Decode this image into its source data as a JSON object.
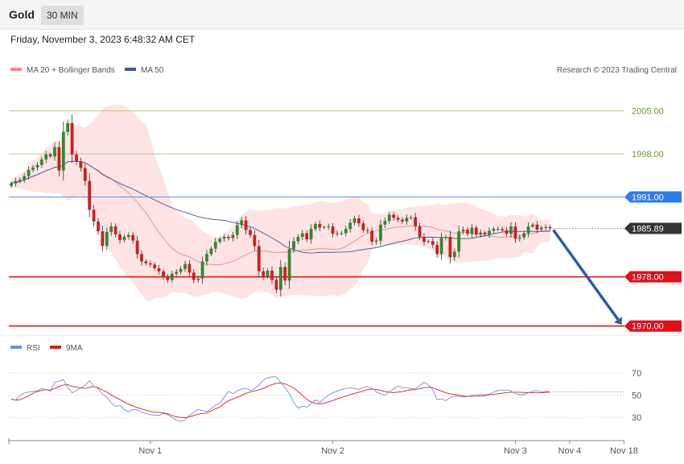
{
  "header": {
    "instrument": "Gold",
    "timeframe": "30 MIN",
    "datetime": "Friday, November 3, 2023 6:48:32 AM CET",
    "credit": "Research © 2023 Trading Central"
  },
  "colors": {
    "bull": "#2f8a2f",
    "bear": "#cc1f1f",
    "bb_fill": "#fde3e3",
    "ma20": "#f08a8a",
    "ma50": "#3a5a9c",
    "resistance_green": "#a9cc7a",
    "pivot_blue": "#5b8def",
    "support_red": "#e01b1b",
    "arrow": "#2f5c9e",
    "rsi": "#6b8fe0",
    "rsi_ma": "#e01b1b"
  },
  "chart_data": [
    {
      "type": "candlestick",
      "legend": [
        {
          "name": "MA 20 + Bollinger Bands",
          "color": "#f08a8a"
        },
        {
          "name": "MA 50",
          "color": "#3a5a9c"
        }
      ],
      "legend_position": "top-left",
      "ylim": [
        1969.7,
        2009.8
      ],
      "x_ticks": [
        "Nov 1",
        "Nov 2",
        "Nov 3",
        "Nov 4",
        "Nov 18"
      ],
      "levels": [
        {
          "value": 2005.0,
          "label": "2005.00",
          "role": "resistance"
        },
        {
          "value": 1998.0,
          "label": "1998.00",
          "role": "resistance"
        },
        {
          "value": 1991.0,
          "label": "1991.00",
          "role": "pivot"
        },
        {
          "value": 1985.89,
          "label": "1985.89",
          "role": "last"
        },
        {
          "value": 1978.0,
          "label": "1978.00",
          "role": "support"
        },
        {
          "value": 1970.0,
          "label": "1970.00",
          "role": "support"
        }
      ],
      "last_price": 1985.89,
      "forecast_arrow": {
        "from": 1985.89,
        "to": 1970.0
      },
      "close": [
        1993.2,
        1993.6,
        1993.8,
        1994.4,
        1995.4,
        1995.8,
        1996.2,
        1997.1,
        1997.9,
        1997.6,
        1999.1,
        1995.3,
        2001.6,
        2003.0,
        1997.9,
        1996.8,
        1995.7,
        1993.6,
        1988.9,
        1987.0,
        1985.4,
        1983.0,
        1985.3,
        1986.2,
        1984.9,
        1984.0,
        1984.5,
        1984.8,
        1983.9,
        1981.7,
        1980.5,
        1980.2,
        1980.0,
        1979.4,
        1978.9,
        1977.9,
        1977.5,
        1978.5,
        1978.8,
        1979.3,
        1980.1,
        1978.7,
        1977.5,
        1977.7,
        1980.5,
        1981.7,
        1982.6,
        1983.7,
        1984.2,
        1984.5,
        1984.3,
        1984.8,
        1986.4,
        1987.2,
        1985.6,
        1984.8,
        1983.0,
        1978.9,
        1978.1,
        1979.0,
        1977.5,
        1975.9,
        1979.6,
        1977.4,
        1982.5,
        1983.8,
        1984.5,
        1985.1,
        1984.1,
        1985.8,
        1986.6,
        1986.0,
        1986.1,
        1986.2,
        1985.0,
        1985.1,
        1985.1,
        1985.8,
        1986.8,
        1987.5,
        1986.7,
        1985.6,
        1985.5,
        1983.7,
        1983.9,
        1986.5,
        1987.1,
        1988.1,
        1987.6,
        1987.3,
        1987.0,
        1987.6,
        1987.7,
        1986.2,
        1984.5,
        1983.7,
        1983.8,
        1983.2,
        1981.7,
        1984.3,
        1984.5,
        1981.2,
        1982.1,
        1985.4,
        1985.7,
        1985.0,
        1986.0,
        1984.9,
        1985.2,
        1984.9,
        1985.5,
        1985.8,
        1985.8,
        1985.6,
        1985.0,
        1986.2,
        1984.2,
        1984.4,
        1985.1,
        1986.2,
        1986.5,
        1985.7,
        1986.0,
        1986.1,
        1985.9
      ],
      "rsi": {
        "legend": [
          {
            "name": "RSI",
            "color": "#6b8fe0"
          },
          {
            "name": "9MA",
            "color": "#e01b1b"
          }
        ],
        "y_ticks": [
          70,
          50,
          30
        ],
        "ylim": [
          17,
          78
        ],
        "rsi_values": [
          46.1,
          45.7,
          49.5,
          51.8,
          52.8,
          53.4,
          54.0,
          56.0,
          54.8,
          53.7,
          61.6,
          62.6,
          63.9,
          57.0,
          52.2,
          54.2,
          56.6,
          59.1,
          63.0,
          58.0,
          55.8,
          50.7,
          48.1,
          43.1,
          39.9,
          40.8,
          37.0,
          35.0,
          37.1,
          36.7,
          34.8,
          33.6,
          32.4,
          32.0,
          31.7,
          33.6,
          32.4,
          29.9,
          27.5,
          26.5,
          27.6,
          31.8,
          34.4,
          37.3,
          36.1,
          35.2,
          37.7,
          41.1,
          42.7,
          48.1,
          53.4,
          51.3,
          54.0,
          55.4,
          56.2,
          54.1,
          55.9,
          59.2,
          63.4,
          65.6,
          66.6,
          66.4,
          61.5,
          56.7,
          51.2,
          43.3,
          38.2,
          40.0,
          39.3,
          42.5,
          45.7,
          43.4,
          46.9,
          50.2,
          52.1,
          53.6,
          55.2,
          55.9,
          56.8,
          55.9,
          55.3,
          56.9,
          57.7,
          56.1,
          53.0,
          51.3,
          50.0,
          52.9,
          55.7,
          58.4,
          56.6,
          57.0,
          55.7,
          56.2,
          58.4,
          61.7,
          59.3,
          55.0,
          46.0,
          46.5,
          45.1,
          47.7,
          49.5,
          48.9,
          48.4,
          48.7,
          50.2,
          50.1,
          50.6,
          50.2,
          50.8,
          52.7,
          54.2,
          54.5,
          54.6,
          53.8,
          51.4,
          50.5,
          50.5,
          52.0,
          53.7,
          54.1,
          52.8,
          53.6,
          53.1
        ],
        "ma9_values": [
          46.6,
          45.5,
          45.8,
          47.5,
          49.5,
          51.6,
          53.3,
          54.2,
          55.0,
          54.5,
          56.0,
          57.8,
          59.2,
          59.5,
          58.0,
          57.2,
          56.6,
          56.1,
          57.0,
          57.7,
          56.6,
          54.6,
          52.8,
          50.1,
          48.1,
          46.0,
          43.9,
          41.8,
          40.4,
          38.8,
          37.6,
          36.5,
          35.3,
          34.6,
          34.6,
          34.0,
          33.3,
          31.7,
          30.5,
          29.9,
          29.7,
          30.5,
          31.7,
          32.9,
          33.4,
          34.0,
          35.8,
          37.7,
          39.4,
          42.4,
          45.0,
          46.5,
          48.1,
          49.8,
          51.6,
          52.9,
          53.8,
          54.8,
          56.2,
          57.9,
          59.5,
          60.7,
          61.0,
          60.2,
          58.5,
          56.4,
          53.3,
          49.8,
          46.2,
          44.0,
          42.5,
          42.2,
          42.6,
          43.8,
          45.2,
          46.7,
          48.0,
          49.1,
          50.5,
          51.5,
          52.6,
          53.9,
          55.1,
          55.5,
          55.2,
          54.3,
          53.3,
          52.7,
          52.2,
          52.8,
          53.3,
          54.1,
          54.7,
          55.0,
          55.8,
          56.7,
          57.2,
          56.8,
          55.1,
          53.6,
          52.2,
          51.1,
          50.7,
          50.0,
          49.4,
          48.9,
          48.9,
          49.0,
          49.3,
          49.6,
          50.2,
          50.7,
          51.3,
          51.8,
          52.3,
          52.6,
          52.6,
          52.6,
          52.4,
          52.3,
          52.2,
          52.1,
          52.2,
          52.5,
          52.7
        ],
        "last_marker": 53.1
      }
    }
  ]
}
